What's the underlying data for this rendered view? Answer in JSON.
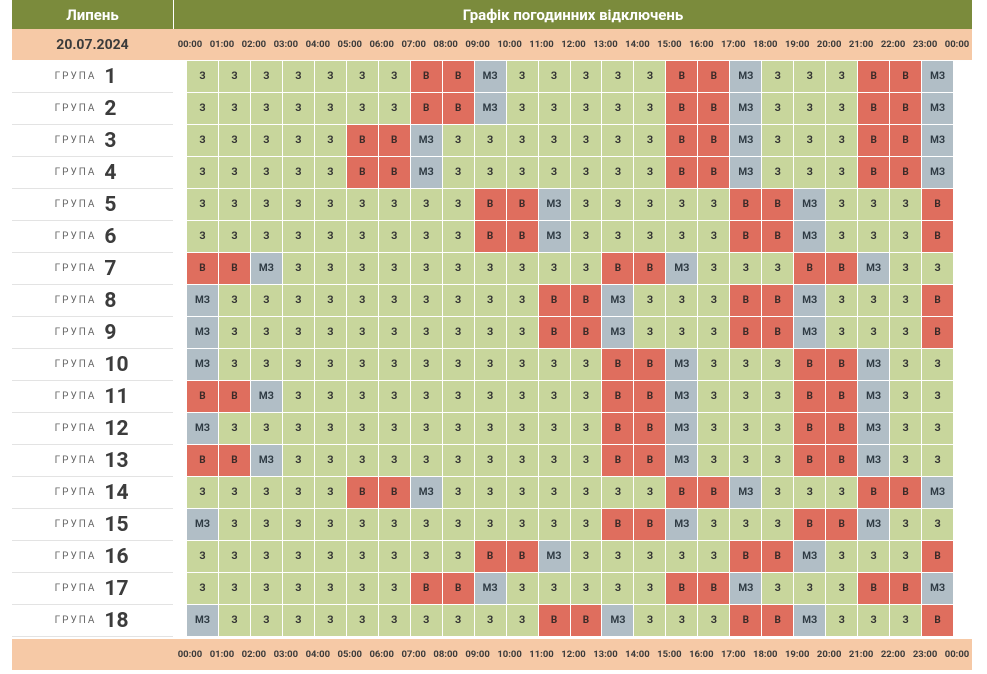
{
  "header": {
    "month": "Липень",
    "title": "Графік погодинних відключень"
  },
  "date": "20.07.2024",
  "times": [
    "00:00",
    "01:00",
    "02:00",
    "03:00",
    "04:00",
    "05:00",
    "06:00",
    "07:00",
    "08:00",
    "09:00",
    "10:00",
    "11:00",
    "12:00",
    "13:00",
    "14:00",
    "15:00",
    "16:00",
    "17:00",
    "18:00",
    "19:00",
    "20:00",
    "21:00",
    "22:00",
    "23:00",
    "00:00"
  ],
  "group_word": "ГРУПА",
  "legend_codes": {
    "z": "З",
    "v": "В",
    "mz": "МЗ"
  },
  "colors": {
    "z": "#c8d69c",
    "v": "#df6e5e",
    "mz": "#b1bec6",
    "header": "#7b8b3c",
    "date_row": "#f6c9a6"
  },
  "groups": [
    {
      "number": "1",
      "cells": [
        "З",
        "З",
        "З",
        "З",
        "З",
        "З",
        "З",
        "В",
        "В",
        "МЗ",
        "З",
        "З",
        "З",
        "З",
        "З",
        "В",
        "В",
        "МЗ",
        "З",
        "З",
        "З",
        "В",
        "В",
        "МЗ"
      ]
    },
    {
      "number": "2",
      "cells": [
        "З",
        "З",
        "З",
        "З",
        "З",
        "З",
        "З",
        "В",
        "В",
        "МЗ",
        "З",
        "З",
        "З",
        "З",
        "З",
        "В",
        "В",
        "МЗ",
        "З",
        "З",
        "З",
        "В",
        "В",
        "МЗ"
      ]
    },
    {
      "number": "3",
      "cells": [
        "З",
        "З",
        "З",
        "З",
        "З",
        "В",
        "В",
        "МЗ",
        "З",
        "З",
        "З",
        "З",
        "З",
        "З",
        "З",
        "В",
        "В",
        "МЗ",
        "З",
        "З",
        "З",
        "В",
        "В",
        "МЗ"
      ]
    },
    {
      "number": "4",
      "cells": [
        "З",
        "З",
        "З",
        "З",
        "З",
        "В",
        "В",
        "МЗ",
        "З",
        "З",
        "З",
        "З",
        "З",
        "З",
        "З",
        "В",
        "В",
        "МЗ",
        "З",
        "З",
        "З",
        "В",
        "В",
        "МЗ"
      ]
    },
    {
      "number": "5",
      "cells": [
        "З",
        "З",
        "З",
        "З",
        "З",
        "З",
        "З",
        "З",
        "З",
        "В",
        "В",
        "МЗ",
        "З",
        "З",
        "З",
        "З",
        "З",
        "В",
        "В",
        "МЗ",
        "З",
        "З",
        "З",
        "В"
      ]
    },
    {
      "number": "6",
      "cells": [
        "З",
        "З",
        "З",
        "З",
        "З",
        "З",
        "З",
        "З",
        "З",
        "В",
        "В",
        "МЗ",
        "З",
        "З",
        "З",
        "З",
        "З",
        "В",
        "В",
        "МЗ",
        "З",
        "З",
        "З",
        "В"
      ]
    },
    {
      "number": "7",
      "cells": [
        "В",
        "В",
        "МЗ",
        "З",
        "З",
        "З",
        "З",
        "З",
        "З",
        "З",
        "З",
        "З",
        "З",
        "В",
        "В",
        "МЗ",
        "З",
        "З",
        "З",
        "В",
        "В",
        "МЗ",
        "З",
        "З"
      ]
    },
    {
      "number": "8",
      "cells": [
        "МЗ",
        "З",
        "З",
        "З",
        "З",
        "З",
        "З",
        "З",
        "З",
        "З",
        "З",
        "В",
        "В",
        "МЗ",
        "З",
        "З",
        "З",
        "В",
        "В",
        "МЗ",
        "З",
        "З",
        "З",
        "В"
      ]
    },
    {
      "number": "9",
      "cells": [
        "МЗ",
        "З",
        "З",
        "З",
        "З",
        "З",
        "З",
        "З",
        "З",
        "З",
        "З",
        "В",
        "В",
        "МЗ",
        "З",
        "З",
        "З",
        "В",
        "В",
        "МЗ",
        "З",
        "З",
        "З",
        "В"
      ]
    },
    {
      "number": "10",
      "cells": [
        "МЗ",
        "З",
        "З",
        "З",
        "З",
        "З",
        "З",
        "З",
        "З",
        "З",
        "З",
        "З",
        "З",
        "В",
        "В",
        "МЗ",
        "З",
        "З",
        "З",
        "В",
        "В",
        "МЗ",
        "З",
        "З"
      ]
    },
    {
      "number": "11",
      "cells": [
        "В",
        "В",
        "МЗ",
        "З",
        "З",
        "З",
        "З",
        "З",
        "З",
        "З",
        "З",
        "З",
        "З",
        "В",
        "В",
        "МЗ",
        "З",
        "З",
        "З",
        "В",
        "В",
        "МЗ",
        "З",
        "З"
      ]
    },
    {
      "number": "12",
      "cells": [
        "МЗ",
        "З",
        "З",
        "З",
        "З",
        "З",
        "З",
        "З",
        "З",
        "З",
        "З",
        "З",
        "З",
        "В",
        "В",
        "МЗ",
        "З",
        "З",
        "З",
        "В",
        "В",
        "МЗ",
        "З",
        "З"
      ]
    },
    {
      "number": "13",
      "cells": [
        "В",
        "В",
        "МЗ",
        "З",
        "З",
        "З",
        "З",
        "З",
        "З",
        "З",
        "З",
        "З",
        "З",
        "В",
        "В",
        "МЗ",
        "З",
        "З",
        "З",
        "В",
        "В",
        "МЗ",
        "З",
        "З"
      ]
    },
    {
      "number": "14",
      "cells": [
        "З",
        "З",
        "З",
        "З",
        "З",
        "В",
        "В",
        "МЗ",
        "З",
        "З",
        "З",
        "З",
        "З",
        "З",
        "З",
        "В",
        "В",
        "МЗ",
        "З",
        "З",
        "З",
        "В",
        "В",
        "МЗ"
      ]
    },
    {
      "number": "15",
      "cells": [
        "МЗ",
        "З",
        "З",
        "З",
        "З",
        "З",
        "З",
        "З",
        "З",
        "З",
        "З",
        "З",
        "З",
        "В",
        "В",
        "МЗ",
        "З",
        "З",
        "З",
        "В",
        "В",
        "МЗ",
        "З",
        "З"
      ]
    },
    {
      "number": "16",
      "cells": [
        "З",
        "З",
        "З",
        "З",
        "З",
        "З",
        "З",
        "З",
        "З",
        "В",
        "В",
        "МЗ",
        "З",
        "З",
        "З",
        "З",
        "З",
        "В",
        "В",
        "МЗ",
        "З",
        "З",
        "З",
        "В"
      ]
    },
    {
      "number": "17",
      "cells": [
        "З",
        "З",
        "З",
        "З",
        "З",
        "З",
        "З",
        "В",
        "В",
        "МЗ",
        "З",
        "З",
        "З",
        "З",
        "З",
        "В",
        "В",
        "МЗ",
        "З",
        "З",
        "З",
        "В",
        "В",
        "МЗ"
      ]
    },
    {
      "number": "18",
      "cells": [
        "МЗ",
        "З",
        "З",
        "З",
        "З",
        "З",
        "З",
        "З",
        "З",
        "З",
        "З",
        "В",
        "В",
        "МЗ",
        "З",
        "З",
        "З",
        "В",
        "В",
        "МЗ",
        "З",
        "З",
        "З",
        "В"
      ]
    }
  ]
}
